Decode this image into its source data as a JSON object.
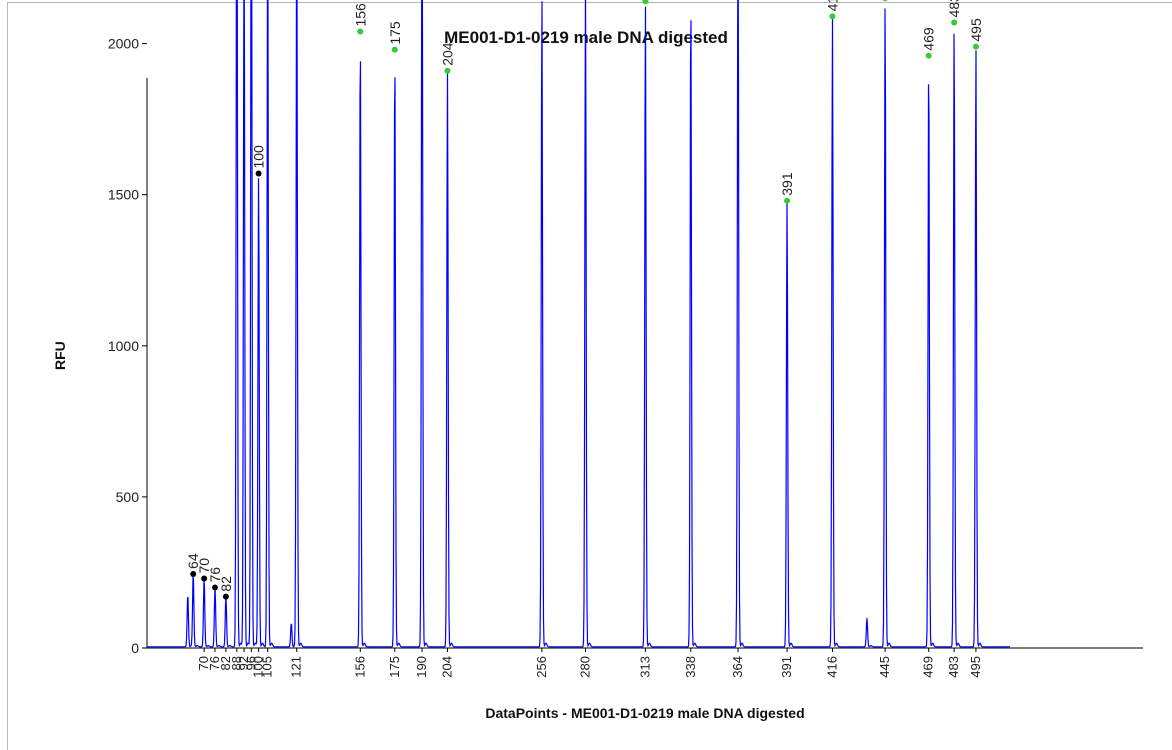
{
  "chart_data": {
    "type": "line",
    "title": "ME001-D1-0219 male DNA digested",
    "xlabel": "DataPoints - ME001-D1-0219 male DNA digested",
    "ylabel": "RFU",
    "ylim": [
      0,
      3750
    ],
    "yticks": [
      0,
      500,
      1000,
      1500,
      2000,
      2500,
      3000,
      3500
    ],
    "grid": false,
    "peaks": [
      {
        "x": 61,
        "y": 175,
        "label": "",
        "marker": "none"
      },
      {
        "x": 64,
        "y": 245,
        "label": "64",
        "marker": "black"
      },
      {
        "x": 70,
        "y": 230,
        "label": "70",
        "marker": "black"
      },
      {
        "x": 76,
        "y": 200,
        "label": "76",
        "marker": "black"
      },
      {
        "x": 82,
        "y": 170,
        "label": "82",
        "marker": "black"
      },
      {
        "x": 88,
        "y": 2930,
        "label": "88",
        "marker": "black"
      },
      {
        "x": 92,
        "y": 2400,
        "label": "92",
        "marker": "black"
      },
      {
        "x": 96,
        "y": 2870,
        "label": "96",
        "marker": "black"
      },
      {
        "x": 100,
        "y": 1570,
        "label": "100",
        "marker": "black"
      },
      {
        "x": 105,
        "y": 2400,
        "label": "105",
        "marker": "black"
      },
      {
        "x": 118,
        "y": 80,
        "label": "",
        "marker": "none"
      },
      {
        "x": 121,
        "y": 2430,
        "label": "121",
        "marker": "green"
      },
      {
        "x": 156,
        "y": 2040,
        "label": "156",
        "marker": "green"
      },
      {
        "x": 175,
        "y": 1980,
        "label": "175",
        "marker": "green"
      },
      {
        "x": 190,
        "y": 2645,
        "label": "190",
        "marker": "green"
      },
      {
        "x": 204,
        "y": 1910,
        "label": "204",
        "marker": "green"
      },
      {
        "x": 256,
        "y": 2165,
        "label": "256",
        "marker": "green"
      },
      {
        "x": 280,
        "y": 2215,
        "label": "280",
        "marker": "green"
      },
      {
        "x": 313,
        "y": 2140,
        "label": "313",
        "marker": "green"
      },
      {
        "x": 338,
        "y": 2170,
        "label": "338",
        "marker": "green"
      },
      {
        "x": 364,
        "y": 2490,
        "label": "364",
        "marker": "green"
      },
      {
        "x": 391,
        "y": 1480,
        "label": "391",
        "marker": "green"
      },
      {
        "x": 416,
        "y": 2090,
        "label": "416",
        "marker": "green"
      },
      {
        "x": 435,
        "y": 95,
        "label": "",
        "marker": "none"
      },
      {
        "x": 445,
        "y": 2150,
        "label": "445",
        "marker": "green"
      },
      {
        "x": 469,
        "y": 1960,
        "label": "469",
        "marker": "green"
      },
      {
        "x": 483,
        "y": 2070,
        "label": "483",
        "marker": "green"
      },
      {
        "x": 495,
        "y": 1990,
        "label": "495",
        "marker": "green"
      }
    ],
    "xtick_labels": [
      "70",
      "76",
      "82",
      "88",
      "92",
      "96",
      "100",
      "105",
      "121",
      "156",
      "175",
      "190",
      "204",
      "256",
      "280",
      "313",
      "338",
      "364",
      "391",
      "416",
      "445",
      "469",
      "483",
      "495"
    ],
    "colors": {
      "trace": "#0000ff",
      "marker_standard": "#000000",
      "marker_sized": "#33cc33",
      "axis": "#000000"
    }
  }
}
